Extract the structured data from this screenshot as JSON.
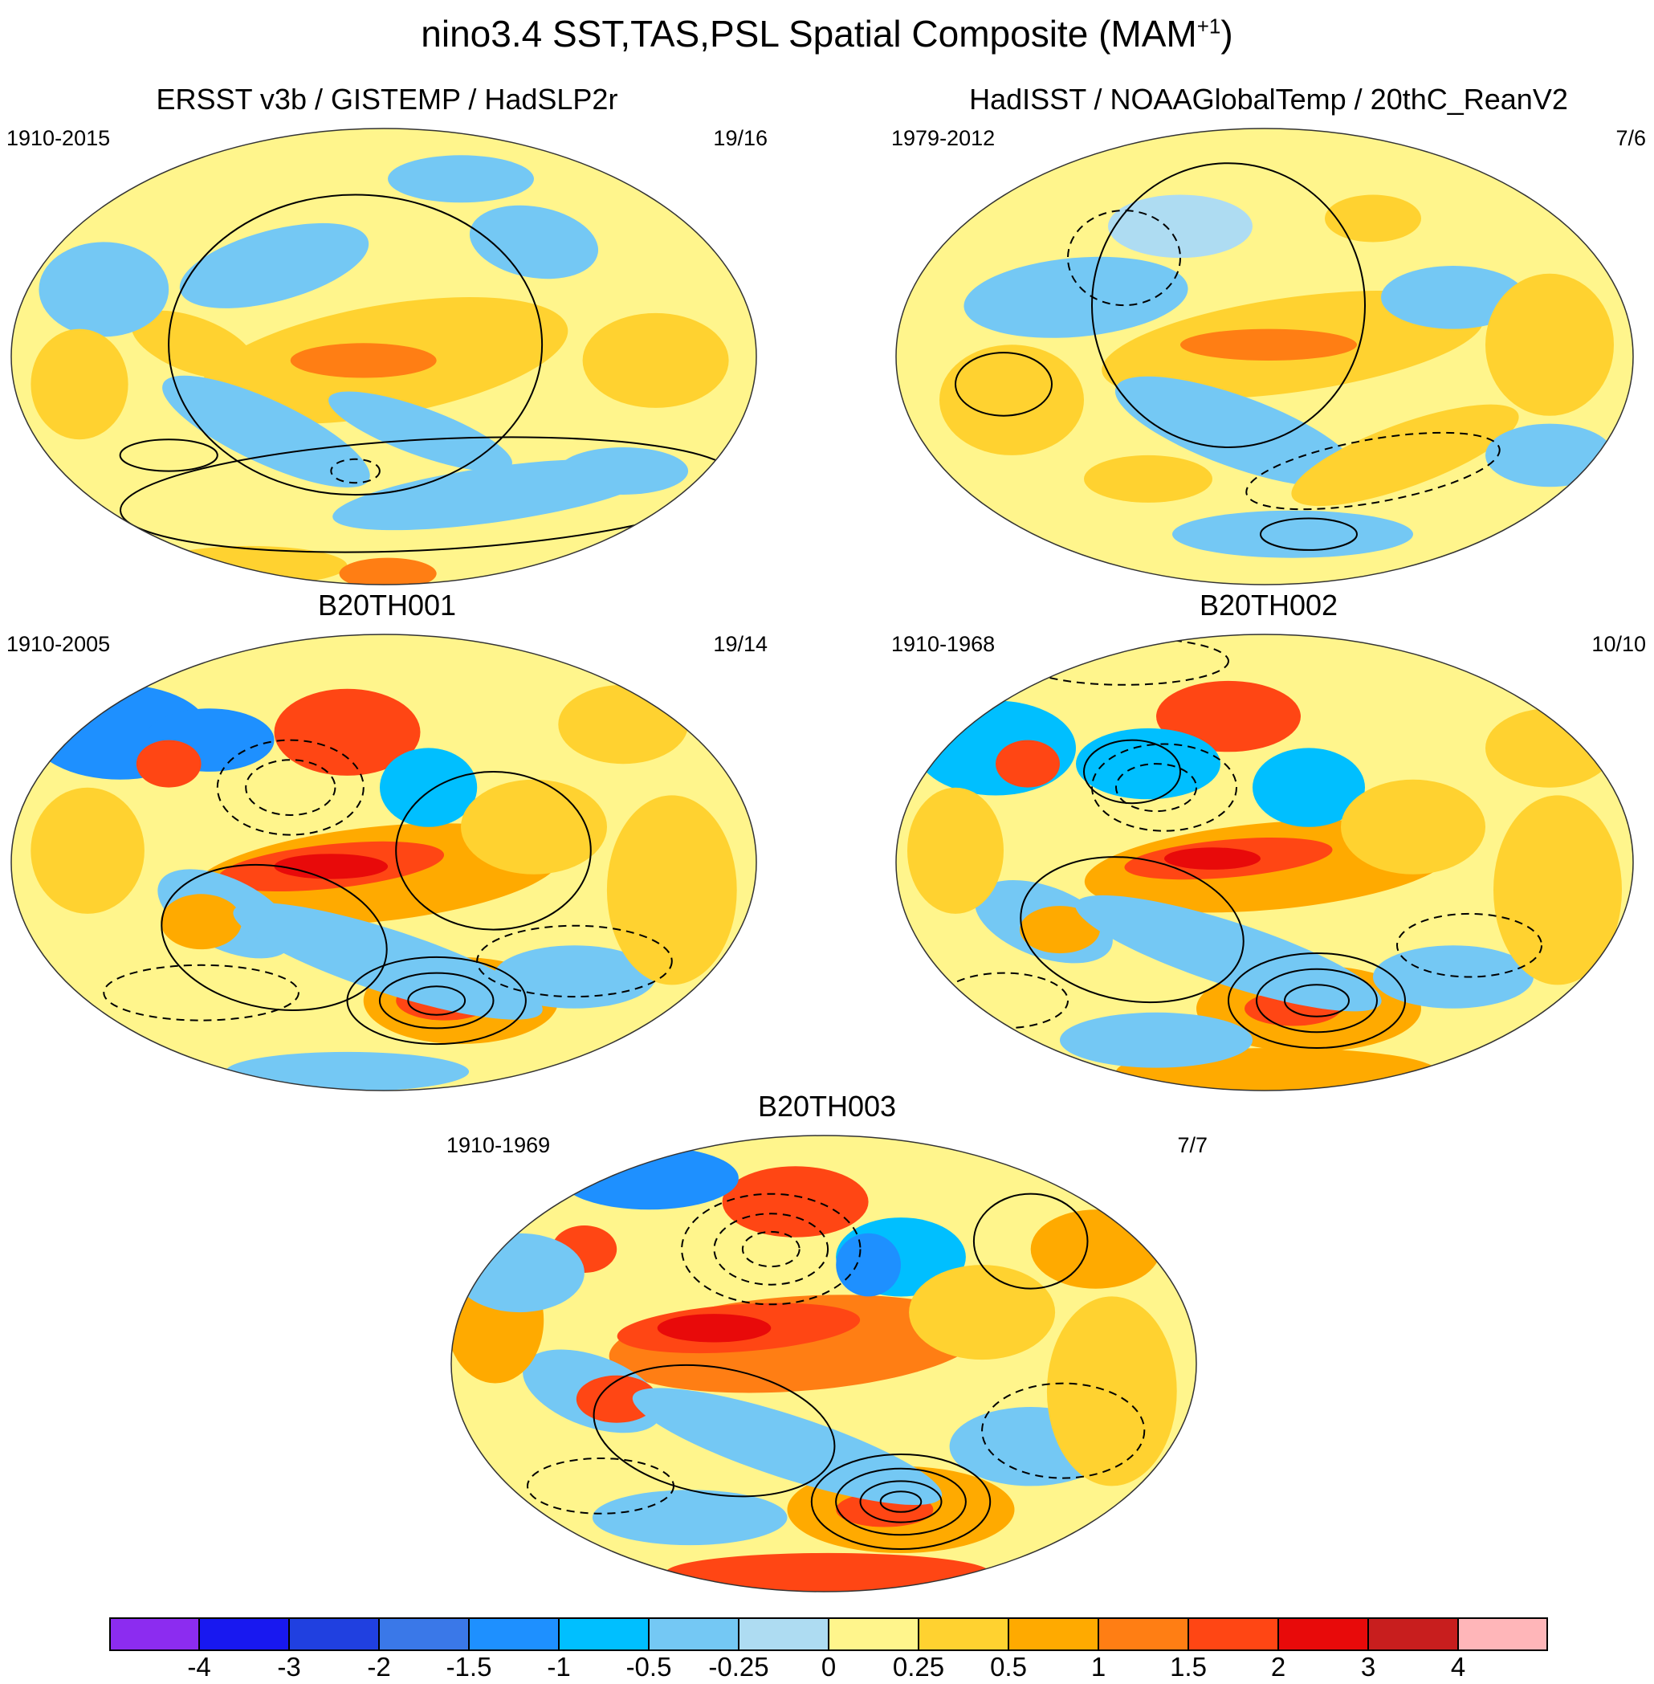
{
  "figure": {
    "title": "nino3.4 SST,TAS,PSL Spatial Composite (MAM",
    "title_superscript": "+1",
    "title_close": ")"
  },
  "panels": [
    {
      "id": "obs1",
      "title": "ERSST v3b / GISTEMP / HadSLP2r",
      "years": "1910-2015",
      "count": "19/16"
    },
    {
      "id": "obs2",
      "title": "HadISST / NOAAGlobalTemp / 20thC_ReanV2",
      "years": "1979-2012",
      "count": "7/6"
    },
    {
      "id": "b001",
      "title": "B20TH001",
      "years": "1910-2005",
      "count": "19/14"
    },
    {
      "id": "b002",
      "title": "B20TH002",
      "years": "1910-1968",
      "count": "10/10"
    },
    {
      "id": "b003",
      "title": "B20TH003",
      "years": "1910-1969",
      "count": "7/7"
    }
  ],
  "colorbar": {
    "labels": [
      "-4",
      "-3",
      "-2",
      "-1.5",
      "-1",
      "-0.5",
      "-0.25",
      "0",
      "0.25",
      "0.5",
      "1",
      "1.5",
      "2",
      "3",
      "4"
    ],
    "colors": [
      "#8c2cf0",
      "#1818f0",
      "#2040e0",
      "#3a78e8",
      "#1e90ff",
      "#00bfff",
      "#74c8f4",
      "#aedcf2",
      "#fff58c",
      "#ffd230",
      "#ffaa00",
      "#ff7e14",
      "#ff4614",
      "#e80a0a",
      "#c81e1e",
      "#ffb6b9"
    ]
  }
}
